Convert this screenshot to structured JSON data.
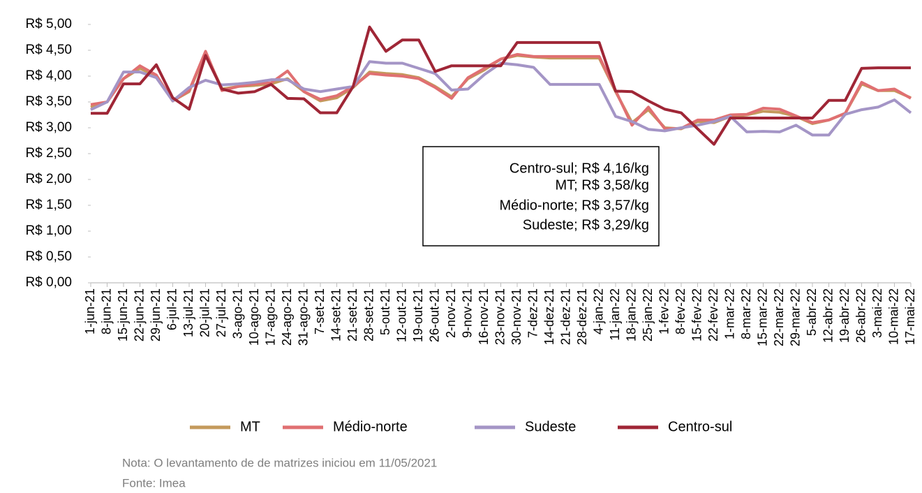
{
  "chart_data": {
    "type": "line",
    "categories": [
      "1-jun-21",
      "8-jun-21",
      "15-jun-21",
      "22-jun-21",
      "29-jun-21",
      "6-jul-21",
      "13-jul-21",
      "20-jul-21",
      "27-jul-21",
      "3-ago-21",
      "10-ago-21",
      "17-ago-21",
      "24-ago-21",
      "31-ago-21",
      "7-set-21",
      "14-set-21",
      "21-set-21",
      "28-set-21",
      "5-out-21",
      "12-out-21",
      "19-out-21",
      "26-out-21",
      "2-nov-21",
      "9-nov-21",
      "16-nov-21",
      "23-nov-21",
      "30-nov-21",
      "7-dez-21",
      "14-dez-21",
      "21-dez-21",
      "28-dez-21",
      "4-jan-22",
      "11-jan-22",
      "18-jan-22",
      "25-jan-22",
      "1-fev-22",
      "8-fev-22",
      "15-fev-22",
      "22-fev-22",
      "1-mar-22",
      "8-mar-22",
      "15-mar-22",
      "22-mar-22",
      "29-mar-22",
      "5-abr-22",
      "12-abr-22",
      "19-abr-22",
      "26-abr-22",
      "3-mai-22",
      "10-mai-22",
      "17-mai-22"
    ],
    "series": [
      {
        "name": "MT",
        "color": "#c49a5c",
        "values": [
          3.4,
          3.5,
          3.95,
          4.15,
          4.0,
          3.52,
          3.7,
          4.45,
          3.75,
          3.8,
          3.82,
          3.85,
          3.95,
          3.7,
          3.52,
          3.58,
          3.78,
          4.08,
          4.05,
          4.03,
          3.97,
          3.8,
          3.6,
          3.95,
          4.12,
          4.33,
          4.4,
          4.37,
          4.35,
          4.35,
          4.35,
          4.35,
          3.7,
          3.1,
          3.35,
          3.0,
          2.98,
          3.12,
          3.1,
          3.22,
          3.25,
          3.32,
          3.3,
          3.22,
          3.08,
          3.15,
          3.28,
          3.85,
          3.72,
          3.72,
          3.58
        ]
      },
      {
        "name": "Médio-norte",
        "color": "#e07072",
        "values": [
          3.45,
          3.5,
          3.95,
          4.2,
          4.02,
          3.52,
          3.72,
          4.48,
          3.72,
          3.8,
          3.85,
          3.87,
          4.1,
          3.7,
          3.55,
          3.62,
          3.8,
          4.05,
          4.02,
          4.0,
          3.95,
          3.78,
          3.57,
          3.97,
          4.15,
          4.33,
          4.42,
          4.38,
          4.38,
          4.38,
          4.38,
          4.38,
          3.72,
          3.05,
          3.4,
          2.98,
          2.99,
          3.15,
          3.15,
          3.25,
          3.26,
          3.38,
          3.36,
          3.23,
          3.1,
          3.15,
          3.28,
          3.88,
          3.72,
          3.75,
          3.57
        ]
      },
      {
        "name": "Sudeste",
        "color": "#a495c6",
        "values": [
          3.35,
          3.5,
          4.08,
          4.08,
          3.97,
          3.52,
          3.78,
          3.92,
          3.83,
          3.85,
          3.88,
          3.93,
          3.93,
          3.75,
          3.7,
          3.75,
          3.8,
          4.28,
          4.25,
          4.25,
          4.15,
          4.05,
          3.73,
          3.75,
          4.03,
          4.25,
          4.22,
          4.17,
          3.84,
          3.84,
          3.84,
          3.84,
          3.22,
          3.12,
          2.97,
          2.94,
          3.0,
          3.05,
          3.12,
          3.22,
          2.92,
          2.93,
          2.92,
          3.05,
          2.86,
          2.86,
          3.26,
          3.35,
          3.4,
          3.54,
          3.29
        ]
      },
      {
        "name": "Centro-sul",
        "color": "#9f2636",
        "values": [
          3.28,
          3.28,
          3.85,
          3.85,
          4.22,
          3.58,
          3.36,
          4.4,
          3.75,
          3.67,
          3.7,
          3.84,
          3.57,
          3.56,
          3.29,
          3.29,
          3.8,
          4.95,
          4.48,
          4.7,
          4.7,
          4.09,
          4.2,
          4.2,
          4.2,
          4.2,
          4.65,
          4.65,
          4.65,
          4.65,
          4.65,
          4.65,
          3.71,
          3.7,
          3.52,
          3.36,
          3.29,
          2.98,
          2.68,
          3.19,
          3.19,
          3.19,
          3.19,
          3.19,
          3.19,
          3.53,
          3.53,
          4.15,
          4.16,
          4.16,
          4.16
        ]
      }
    ],
    "ylim": [
      0,
      5
    ],
    "yticks": [
      {
        "value": 0,
        "label": "R$ 0,00"
      },
      {
        "value": 0.5,
        "label": "R$ 0,50"
      },
      {
        "value": 1,
        "label": "R$ 1,00"
      },
      {
        "value": 1.5,
        "label": "R$ 1,50"
      },
      {
        "value": 2,
        "label": "R$ 2,00"
      },
      {
        "value": 2.5,
        "label": "R$ 2,50"
      },
      {
        "value": 3,
        "label": "R$ 3,00"
      },
      {
        "value": 3.5,
        "label": "R$ 3,50"
      },
      {
        "value": 4,
        "label": "R$ 4,00"
      },
      {
        "value": 4.5,
        "label": "R$ 4,50"
      },
      {
        "value": 5,
        "label": "R$ 5,00"
      }
    ],
    "annotations": [
      "Centro-sul; R$ 4,16/kg",
      "MT; R$ 3,58/kg",
      "Médio-norte; R$ 3,57/kg",
      "Sudeste; R$ 3,29/kg"
    ],
    "notes": [
      "Nota: O levantamento de de matrizes iniciou em 11/05/2021",
      "Fonte: Imea"
    ]
  }
}
